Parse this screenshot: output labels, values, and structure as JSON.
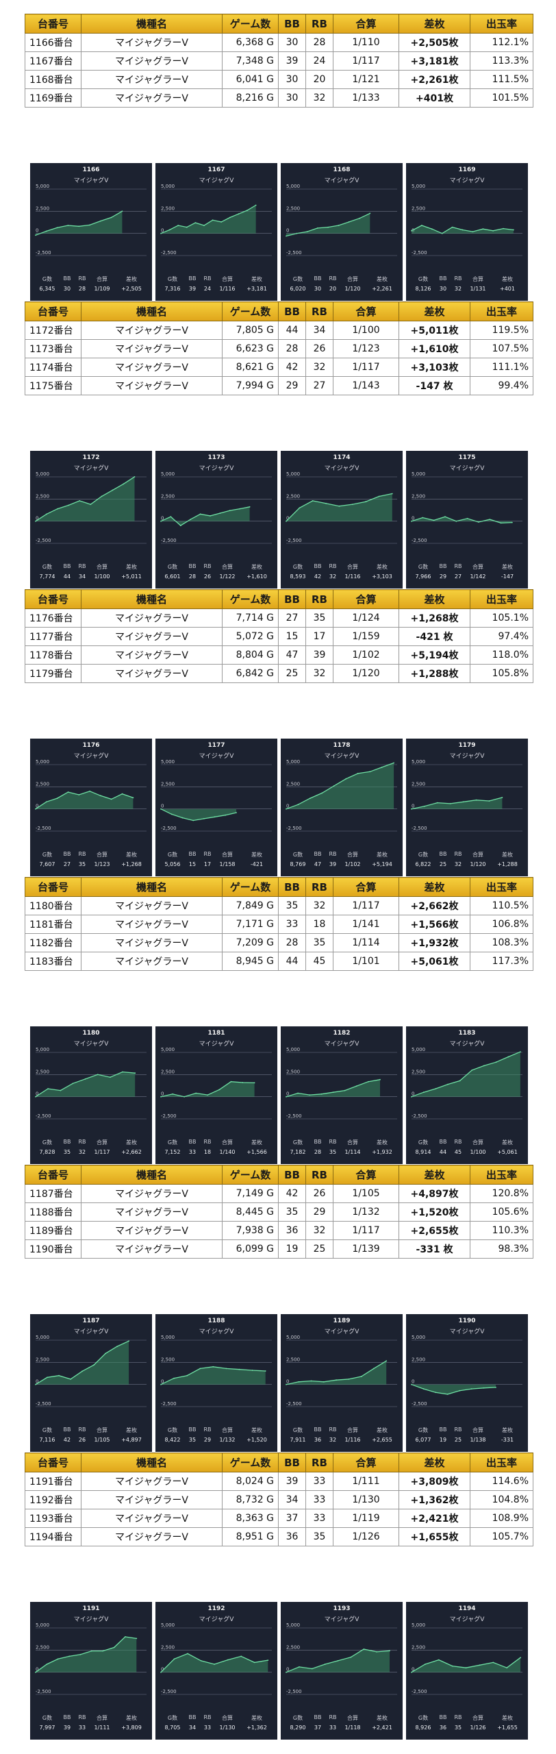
{
  "table_headers": {
    "id": "台番号",
    "name": "機種名",
    "games": "ゲーム数",
    "bb": "BB",
    "rb": "RB",
    "combined": "合算",
    "diff": "差枚",
    "rate": "出玉率"
  },
  "card_axis_labels": [
    "5,000",
    "2,500",
    "0",
    "-2,500"
  ],
  "card_stat_labels": {
    "games": "G数",
    "bb": "BB",
    "rb": "RB",
    "combined": "合算",
    "diff": "差枚"
  },
  "chart_data": [
    {
      "type": "table",
      "rows": [
        {
          "id": "1166番台",
          "name": "マイジャグラーV",
          "games": "6,368 G",
          "bb": "30",
          "rb": "28",
          "combined": "1/110",
          "diff": "+2,505枚",
          "rate": "112.1%",
          "sign": "pos"
        },
        {
          "id": "1167番台",
          "name": "マイジャグラーV",
          "games": "7,348 G",
          "bb": "39",
          "rb": "24",
          "combined": "1/117",
          "diff": "+3,181枚",
          "rate": "113.3%",
          "sign": "pos"
        },
        {
          "id": "1168番台",
          "name": "マイジャグラーV",
          "games": "6,041 G",
          "bb": "30",
          "rb": "20",
          "combined": "1/121",
          "diff": "+2,261枚",
          "rate": "111.5%",
          "sign": "pos"
        },
        {
          "id": "1169番台",
          "name": "マイジャグラーV",
          "games": "8,216 G",
          "bb": "30",
          "rb": "32",
          "combined": "1/133",
          "diff": "+401枚",
          "rate": "101.5%",
          "sign": "pos"
        }
      ],
      "cards": [
        {
          "id": "1166",
          "name": "マイジャグV",
          "games": "6,345",
          "bb": "30",
          "rb": "28",
          "combined": "1/109",
          "diff": "+2,505",
          "values": [
            -200,
            250,
            650,
            900,
            800,
            950,
            1400,
            1800,
            2500
          ]
        },
        {
          "id": "1167",
          "name": "マイジャグV",
          "games": "7,316",
          "bb": "39",
          "rb": "24",
          "combined": "1/116",
          "diff": "+3,181",
          "values": [
            0,
            400,
            900,
            700,
            1200,
            900,
            1500,
            1300,
            1800,
            2200,
            2600,
            3181
          ]
        },
        {
          "id": "1168",
          "name": "マイジャグV",
          "games": "6,020",
          "bb": "30",
          "rb": "20",
          "combined": "1/120",
          "diff": "+2,261",
          "values": [
            -300,
            0,
            200,
            600,
            700,
            900,
            1300,
            1700,
            2261
          ]
        },
        {
          "id": "1169",
          "name": "マイジャグV",
          "games": "8,126",
          "bb": "30",
          "rb": "32",
          "combined": "1/131",
          "diff": "+401",
          "values": [
            300,
            900,
            500,
            0,
            700,
            400,
            200,
            500,
            300,
            550,
            401
          ]
        }
      ]
    },
    {
      "type": "table",
      "rows": [
        {
          "id": "1172番台",
          "name": "マイジャグラーV",
          "games": "7,805 G",
          "bb": "44",
          "rb": "34",
          "combined": "1/100",
          "diff": "+5,011枚",
          "rate": "119.5%",
          "sign": "pos"
        },
        {
          "id": "1173番台",
          "name": "マイジャグラーV",
          "games": "6,623 G",
          "bb": "28",
          "rb": "26",
          "combined": "1/123",
          "diff": "+1,610枚",
          "rate": "107.5%",
          "sign": "pos"
        },
        {
          "id": "1174番台",
          "name": "マイジャグラーV",
          "games": "8,621 G",
          "bb": "42",
          "rb": "32",
          "combined": "1/117",
          "diff": "+3,103枚",
          "rate": "111.1%",
          "sign": "pos"
        },
        {
          "id": "1175番台",
          "name": "マイジャグラーV",
          "games": "7,994 G",
          "bb": "29",
          "rb": "27",
          "combined": "1/143",
          "diff": "-147 枚",
          "rate": "99.4%",
          "sign": "neg"
        }
      ],
      "cards": [
        {
          "id": "1172",
          "name": "マイジャグV",
          "games": "7,774",
          "bb": "44",
          "rb": "34",
          "combined": "1/100",
          "diff": "+5,011",
          "values": [
            0,
            800,
            1400,
            1800,
            2300,
            1900,
            2800,
            3500,
            4200,
            5011
          ]
        },
        {
          "id": "1173",
          "name": "マイジャグV",
          "games": "6,601",
          "bb": "28",
          "rb": "26",
          "combined": "1/122",
          "diff": "+1,610",
          "values": [
            0,
            500,
            -500,
            200,
            800,
            600,
            900,
            1200,
            1400,
            1610
          ]
        },
        {
          "id": "1174",
          "name": "マイジャグV",
          "games": "8,593",
          "bb": "42",
          "rb": "32",
          "combined": "1/116",
          "diff": "+3,103",
          "values": [
            0,
            1500,
            2300,
            2000,
            1700,
            1900,
            2200,
            2800,
            3103
          ]
        },
        {
          "id": "1175",
          "name": "マイジャグV",
          "games": "7,966",
          "bb": "29",
          "rb": "27",
          "combined": "1/142",
          "diff": "-147",
          "values": [
            0,
            400,
            100,
            500,
            0,
            300,
            -100,
            200,
            -200,
            -147
          ]
        }
      ]
    },
    {
      "type": "table",
      "rows": [
        {
          "id": "1176番台",
          "name": "マイジャグラーV",
          "games": "7,714 G",
          "bb": "27",
          "rb": "35",
          "combined": "1/124",
          "diff": "+1,268枚",
          "rate": "105.1%",
          "sign": "pos"
        },
        {
          "id": "1177番台",
          "name": "マイジャグラーV",
          "games": "5,072 G",
          "bb": "15",
          "rb": "17",
          "combined": "1/159",
          "diff": "-421 枚",
          "rate": "97.4%",
          "sign": "neg"
        },
        {
          "id": "1178番台",
          "name": "マイジャグラーV",
          "games": "8,804 G",
          "bb": "47",
          "rb": "39",
          "combined": "1/102",
          "diff": "+5,194枚",
          "rate": "118.0%",
          "sign": "pos"
        },
        {
          "id": "1179番台",
          "name": "マイジャグラーV",
          "games": "6,842 G",
          "bb": "25",
          "rb": "32",
          "combined": "1/120",
          "diff": "+1,288枚",
          "rate": "105.8%",
          "sign": "pos"
        }
      ],
      "cards": [
        {
          "id": "1176",
          "name": "マイジャグV",
          "games": "7,607",
          "bb": "27",
          "rb": "35",
          "combined": "1/123",
          "diff": "+1,268",
          "values": [
            0,
            800,
            1200,
            1900,
            1600,
            2000,
            1500,
            1100,
            1700,
            1268
          ]
        },
        {
          "id": "1177",
          "name": "マイジャグV",
          "games": "5,056",
          "bb": "15",
          "rb": "17",
          "combined": "1/158",
          "diff": "-421",
          "values": [
            0,
            -600,
            -1000,
            -1300,
            -1100,
            -900,
            -700,
            -421
          ]
        },
        {
          "id": "1178",
          "name": "マイジャグV",
          "games": "8,769",
          "bb": "47",
          "rb": "39",
          "combined": "1/102",
          "diff": "+5,194",
          "values": [
            0,
            500,
            1200,
            1800,
            2600,
            3400,
            4000,
            4200,
            4700,
            5194
          ]
        },
        {
          "id": "1179",
          "name": "マイジャグV",
          "games": "6,822",
          "bb": "25",
          "rb": "32",
          "combined": "1/120",
          "diff": "+1,288",
          "values": [
            0,
            300,
            700,
            600,
            800,
            1000,
            900,
            1288
          ]
        }
      ]
    },
    {
      "type": "table",
      "rows": [
        {
          "id": "1180番台",
          "name": "マイジャグラーV",
          "games": "7,849 G",
          "bb": "35",
          "rb": "32",
          "combined": "1/117",
          "diff": "+2,662枚",
          "rate": "110.5%",
          "sign": "pos"
        },
        {
          "id": "1181番台",
          "name": "マイジャグラーV",
          "games": "7,171 G",
          "bb": "33",
          "rb": "18",
          "combined": "1/141",
          "diff": "+1,566枚",
          "rate": "106.8%",
          "sign": "pos"
        },
        {
          "id": "1182番台",
          "name": "マイジャグラーV",
          "games": "7,209 G",
          "bb": "28",
          "rb": "35",
          "combined": "1/114",
          "diff": "+1,932枚",
          "rate": "108.3%",
          "sign": "pos"
        },
        {
          "id": "1183番台",
          "name": "マイジャグラーV",
          "games": "8,945 G",
          "bb": "44",
          "rb": "45",
          "combined": "1/101",
          "diff": "+5,061枚",
          "rate": "117.3%",
          "sign": "pos"
        }
      ],
      "cards": [
        {
          "id": "1180",
          "name": "マイジャグV",
          "games": "7,828",
          "bb": "35",
          "rb": "32",
          "combined": "1/117",
          "diff": "+2,662",
          "values": [
            0,
            900,
            700,
            1500,
            2000,
            2500,
            2200,
            2800,
            2662
          ]
        },
        {
          "id": "1181",
          "name": "マイジャグV",
          "games": "7,152",
          "bb": "33",
          "rb": "18",
          "combined": "1/140",
          "diff": "+1,566",
          "values": [
            0,
            300,
            0,
            400,
            200,
            800,
            1700,
            1600,
            1566
          ]
        },
        {
          "id": "1182",
          "name": "マイジャグV",
          "games": "7,182",
          "bb": "28",
          "rb": "35",
          "combined": "1/114",
          "diff": "+1,932",
          "values": [
            0,
            400,
            200,
            300,
            500,
            700,
            1200,
            1700,
            1932
          ]
        },
        {
          "id": "1183",
          "name": "マイジャグV",
          "games": "8,914",
          "bb": "44",
          "rb": "45",
          "combined": "1/100",
          "diff": "+5,061",
          "values": [
            0,
            500,
            900,
            1400,
            1800,
            3000,
            3500,
            3900,
            4500,
            5061
          ]
        }
      ]
    },
    {
      "type": "table",
      "rows": [
        {
          "id": "1187番台",
          "name": "マイジャグラーV",
          "games": "7,149 G",
          "bb": "42",
          "rb": "26",
          "combined": "1/105",
          "diff": "+4,897枚",
          "rate": "120.8%",
          "sign": "pos"
        },
        {
          "id": "1188番台",
          "name": "マイジャグラーV",
          "games": "8,445 G",
          "bb": "35",
          "rb": "29",
          "combined": "1/132",
          "diff": "+1,520枚",
          "rate": "105.6%",
          "sign": "pos"
        },
        {
          "id": "1189番台",
          "name": "マイジャグラーV",
          "games": "7,938 G",
          "bb": "36",
          "rb": "32",
          "combined": "1/117",
          "diff": "+2,655枚",
          "rate": "110.3%",
          "sign": "pos"
        },
        {
          "id": "1190番台",
          "name": "マイジャグラーV",
          "games": "6,099 G",
          "bb": "19",
          "rb": "25",
          "combined": "1/139",
          "diff": "-331 枚",
          "rate": "98.3%",
          "sign": "neg"
        }
      ],
      "cards": [
        {
          "id": "1187",
          "name": "マイジャグV",
          "games": "7,116",
          "bb": "42",
          "rb": "26",
          "combined": "1/105",
          "diff": "+4,897",
          "values": [
            0,
            800,
            1000,
            600,
            1500,
            2200,
            3500,
            4300,
            4897
          ]
        },
        {
          "id": "1188",
          "name": "マイジャグV",
          "games": "8,422",
          "bb": "35",
          "rb": "29",
          "combined": "1/132",
          "diff": "+1,520",
          "values": [
            0,
            700,
            1000,
            1800,
            2000,
            1800,
            1700,
            1600,
            1520
          ]
        },
        {
          "id": "1189",
          "name": "マイジャグV",
          "games": "7,911",
          "bb": "36",
          "rb": "32",
          "combined": "1/116",
          "diff": "+2,655",
          "values": [
            0,
            300,
            400,
            300,
            500,
            600,
            900,
            1800,
            2655
          ]
        },
        {
          "id": "1190",
          "name": "マイジャグV",
          "games": "6,077",
          "bb": "19",
          "rb": "25",
          "combined": "1/138",
          "diff": "-331",
          "values": [
            0,
            -500,
            -900,
            -1100,
            -700,
            -500,
            -400,
            -331
          ]
        }
      ]
    },
    {
      "type": "table",
      "rows": [
        {
          "id": "1191番台",
          "name": "マイジャグラーV",
          "games": "8,024 G",
          "bb": "39",
          "rb": "33",
          "combined": "1/111",
          "diff": "+3,809枚",
          "rate": "114.6%",
          "sign": "pos"
        },
        {
          "id": "1192番台",
          "name": "マイジャグラーV",
          "games": "8,732 G",
          "bb": "34",
          "rb": "33",
          "combined": "1/130",
          "diff": "+1,362枚",
          "rate": "104.8%",
          "sign": "pos"
        },
        {
          "id": "1193番台",
          "name": "マイジャグラーV",
          "games": "8,363 G",
          "bb": "37",
          "rb": "33",
          "combined": "1/119",
          "diff": "+2,421枚",
          "rate": "108.9%",
          "sign": "pos"
        },
        {
          "id": "1194番台",
          "name": "マイジャグラーV",
          "games": "8,951 G",
          "bb": "36",
          "rb": "35",
          "combined": "1/126",
          "diff": "+1,655枚",
          "rate": "105.7%",
          "sign": "pos"
        }
      ],
      "cards": [
        {
          "id": "1191",
          "name": "マイジャグV",
          "games": "7,997",
          "bb": "39",
          "rb": "33",
          "combined": "1/111",
          "diff": "+3,809",
          "values": [
            0,
            900,
            1500,
            1800,
            2000,
            2400,
            2400,
            2800,
            4000,
            3809
          ]
        },
        {
          "id": "1192",
          "name": "マイジャグV",
          "games": "8,705",
          "bb": "34",
          "rb": "33",
          "combined": "1/130",
          "diff": "+1,362",
          "values": [
            0,
            1500,
            2100,
            1300,
            900,
            1400,
            1800,
            1100,
            1362
          ]
        },
        {
          "id": "1193",
          "name": "マイジャグV",
          "games": "8,290",
          "bb": "37",
          "rb": "33",
          "combined": "1/118",
          "diff": "+2,421",
          "values": [
            0,
            600,
            400,
            900,
            1300,
            1700,
            2600,
            2300,
            2421
          ]
        },
        {
          "id": "1194",
          "name": "マイジャグV",
          "games": "8,926",
          "bb": "36",
          "rb": "35",
          "combined": "1/126",
          "diff": "+1,655",
          "values": [
            0,
            900,
            1400,
            700,
            500,
            800,
            1100,
            500,
            1655
          ]
        }
      ]
    }
  ]
}
